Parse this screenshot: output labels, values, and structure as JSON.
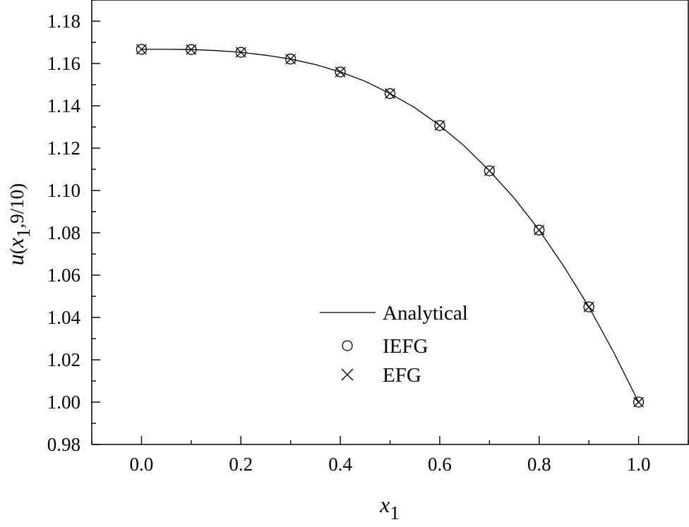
{
  "chart_data": {
    "type": "line",
    "x_label": {
      "main": "x",
      "sub": "1"
    },
    "y_label": {
      "main": "u",
      "open": "(",
      "var": "x",
      "sub": "1",
      "rest": ",9/10)"
    },
    "xlim": [
      -0.1,
      1.1
    ],
    "ylim": [
      0.98,
      1.19
    ],
    "x_ticks": [
      0.0,
      0.2,
      0.4,
      0.6,
      0.8,
      1.0
    ],
    "x_tick_labels": [
      "0.0",
      "0.2",
      "0.4",
      "0.6",
      "0.8",
      "1.0"
    ],
    "y_ticks": [
      0.98,
      1.0,
      1.02,
      1.04,
      1.06,
      1.08,
      1.1,
      1.12,
      1.14,
      1.16,
      1.18
    ],
    "y_tick_labels": [
      "0.98",
      "1.00",
      "1.02",
      "1.04",
      "1.06",
      "1.08",
      "1.10",
      "1.12",
      "1.14",
      "1.16",
      "1.18"
    ],
    "legend_position": "center-left",
    "series": [
      {
        "name": "Analytical",
        "style": "line",
        "x": [
          0.0,
          0.05,
          0.1,
          0.15,
          0.2,
          0.25,
          0.3,
          0.35,
          0.4,
          0.45,
          0.5,
          0.55,
          0.6,
          0.65,
          0.7,
          0.75,
          0.8,
          0.85,
          0.9,
          0.95,
          1.0
        ],
        "y": [
          1.1667,
          1.1667,
          1.1666,
          1.1661,
          1.1653,
          1.1639,
          1.1621,
          1.1595,
          1.156,
          1.1516,
          1.1458,
          1.1391,
          1.1307,
          1.1209,
          1.1093,
          1.0963,
          1.0813,
          1.064,
          1.045,
          1.0235,
          1.0
        ]
      },
      {
        "name": "IEFG",
        "style": "circle",
        "x": [
          0.0,
          0.1,
          0.2,
          0.3,
          0.4,
          0.5,
          0.6,
          0.7,
          0.8,
          0.9,
          1.0
        ],
        "y": [
          1.1667,
          1.1666,
          1.1653,
          1.1621,
          1.156,
          1.1458,
          1.1307,
          1.1093,
          1.0813,
          1.045,
          1.0
        ]
      },
      {
        "name": "EFG",
        "style": "cross",
        "x": [
          0.0,
          0.1,
          0.2,
          0.3,
          0.4,
          0.5,
          0.6,
          0.7,
          0.8,
          0.9,
          1.0
        ],
        "y": [
          1.1667,
          1.1666,
          1.1653,
          1.1621,
          1.156,
          1.1458,
          1.1307,
          1.1093,
          1.0813,
          1.045,
          1.0
        ]
      }
    ]
  }
}
